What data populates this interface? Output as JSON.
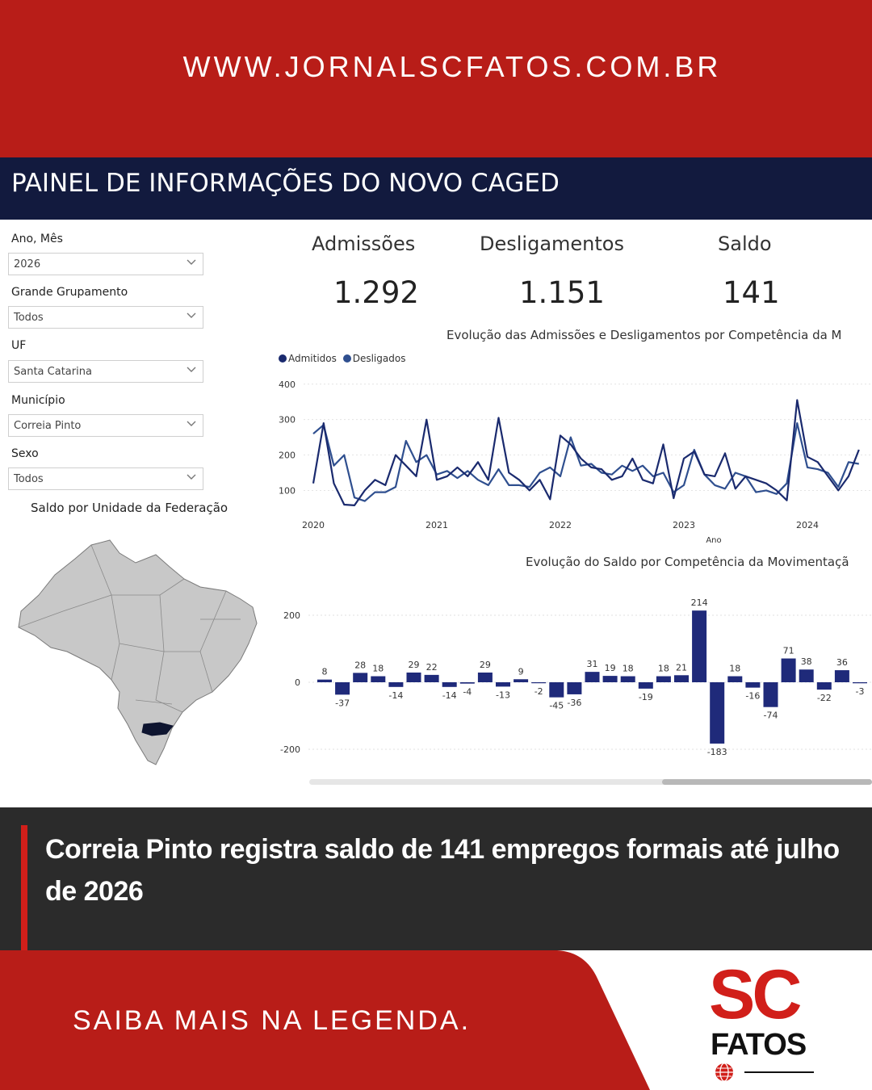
{
  "site": {
    "url": "WWW.JORNALSCFATOS.COM.BR"
  },
  "dashboard": {
    "title": "PAINEL DE INFORMAÇÕES DO NOVO CAGED",
    "filters": [
      {
        "label": "Ano, Mês",
        "value": "2026"
      },
      {
        "label": "Grande Grupamento",
        "value": "Todos"
      },
      {
        "label": "UF",
        "value": "Santa Catarina"
      },
      {
        "label": "Município",
        "value": "Correia Pinto"
      },
      {
        "label": "Sexo",
        "value": "Todos"
      }
    ],
    "map_title": "Saldo por Unidade da Federação",
    "kpis": [
      {
        "label": "Admissões",
        "value": "1.292"
      },
      {
        "label": "Desligamentos",
        "value": "1.151"
      },
      {
        "label": "Saldo",
        "value": "141"
      }
    ],
    "line_chart_title": "Evolução das Admissões e Desligamentos por Competência da M",
    "bar_chart_title": "Evolução do Saldo por Competência da Movimentaçã",
    "legend": [
      {
        "name": "Admitidos",
        "color": "#1a2a6e"
      },
      {
        "name": "Desligados",
        "color": "#2f4f8f"
      }
    ],
    "line_x_axis_label": "Ano"
  },
  "chart_data": [
    {
      "type": "line",
      "title": "Evolução das Admissões e Desligamentos por Competência da M",
      "xlabel": "Ano",
      "x_ticks": [
        "2020",
        "2021",
        "2022",
        "2023",
        "2024"
      ],
      "y_ticks": [
        100,
        200,
        300,
        400
      ],
      "ylim": [
        60,
        420
      ],
      "series": [
        {
          "name": "Admitidos",
          "color": "#1a2a6e",
          "values": [
            120,
            290,
            120,
            60,
            58,
            100,
            130,
            115,
            200,
            170,
            140,
            300,
            130,
            140,
            165,
            140,
            180,
            130,
            305,
            150,
            130,
            100,
            130,
            75,
            255,
            230,
            190,
            165,
            160,
            130,
            140,
            190,
            130,
            120,
            230,
            78,
            190,
            210,
            145,
            140,
            205,
            105,
            140,
            130,
            120,
            100,
            72,
            355,
            195,
            180,
            140,
            100,
            140,
            215
          ]
        },
        {
          "name": "Desligados",
          "color": "#2f4f8f",
          "values": [
            260,
            285,
            170,
            200,
            80,
            70,
            95,
            95,
            110,
            240,
            180,
            200,
            145,
            155,
            135,
            155,
            130,
            115,
            160,
            115,
            115,
            110,
            150,
            165,
            140,
            250,
            170,
            175,
            150,
            145,
            170,
            155,
            170,
            140,
            150,
            95,
            115,
            215,
            145,
            115,
            105,
            150,
            140,
            95,
            100,
            90,
            120,
            290,
            165,
            160,
            150,
            110,
            180,
            175
          ]
        }
      ]
    },
    {
      "type": "bar",
      "title": "Evolução do Saldo por Competência da Movimentaçã",
      "y_ticks": [
        -200,
        0,
        200
      ],
      "ylim": [
        -220,
        250
      ],
      "values": [
        8,
        -37,
        28,
        18,
        -14,
        29,
        22,
        -14,
        -4,
        29,
        -13,
        9,
        -2,
        -45,
        -36,
        31,
        19,
        18,
        -19,
        18,
        21,
        214,
        -183,
        18,
        -16,
        -74,
        71,
        38,
        -22,
        36,
        -3
      ],
      "labels": [
        "8",
        "-37",
        "28",
        "18",
        "-14",
        "29",
        "22",
        "-14",
        "-4",
        "29",
        "-13",
        "9",
        "-2",
        "-45",
        "-36",
        "31",
        "19",
        "18",
        "-19",
        "18",
        "21",
        "214",
        "-183",
        "18",
        "-16",
        "-74",
        "71",
        "38",
        "-22",
        "36",
        "-3"
      ],
      "color": "#1f2a7a"
    }
  ],
  "caption": {
    "text": "Correia Pinto registra saldo de 141 empregos formais até julho de 2026"
  },
  "footer": {
    "cta": "SAIBA MAIS NA LEGENDA."
  },
  "logo": {
    "sc": "SC",
    "fatos": "FATOS"
  },
  "colors": {
    "brand_red": "#b81d18",
    "dark_navy": "#121a3e",
    "caption_bg": "#2b2b2b"
  }
}
